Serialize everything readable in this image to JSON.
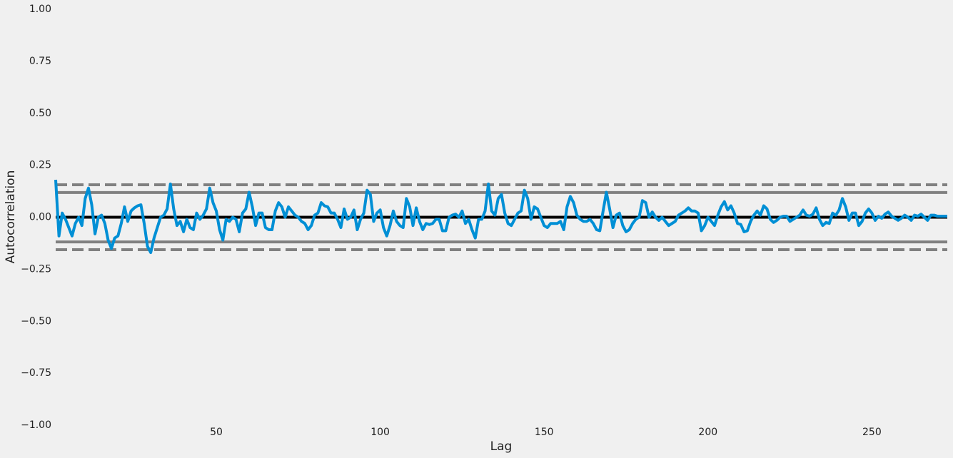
{
  "chart_data": {
    "type": "line",
    "xlabel": "Lag",
    "ylabel": "Autocorrelation",
    "color": "#008fd5",
    "xlim": [
      1,
      273
    ],
    "ylim": [
      -1,
      1
    ],
    "xticks": [
      50,
      100,
      150,
      200,
      250
    ],
    "yticks": [
      {
        "value": -1,
        "label": "−1.00"
      },
      {
        "value": -0.75,
        "label": "−0.75"
      },
      {
        "value": -0.5,
        "label": "−0.50"
      },
      {
        "value": -0.25,
        "label": "−0.25"
      },
      {
        "value": 0,
        "label": "0.00"
      },
      {
        "value": 0.25,
        "label": "0.25"
      },
      {
        "value": 0.5,
        "label": "0.50"
      },
      {
        "value": 0.75,
        "label": "0.75"
      },
      {
        "value": 1,
        "label": "1.00"
      }
    ],
    "hlines": [
      {
        "value": 0.1559,
        "style": "dashed",
        "color": "#808080"
      },
      {
        "value": 0.1186,
        "style": "solid",
        "color": "#808080"
      },
      {
        "value": 0,
        "style": "solid",
        "color": "#000000"
      },
      {
        "value": -0.1186,
        "style": "solid",
        "color": "#808080"
      },
      {
        "value": -0.1559,
        "style": "dashed",
        "color": "#808080"
      }
    ],
    "x": [
      1,
      2,
      3,
      4,
      5,
      6,
      7,
      8,
      9,
      10,
      11,
      12,
      13,
      14,
      15,
      16,
      17,
      18,
      19,
      20,
      21,
      22,
      23,
      24,
      25,
      26,
      27,
      28,
      29,
      30,
      31,
      32,
      33,
      34,
      35,
      36,
      37,
      38,
      39,
      40,
      41,
      42,
      43,
      44,
      45,
      46,
      47,
      48,
      49,
      50,
      51,
      52,
      53,
      54,
      55,
      56,
      57,
      58,
      59,
      60,
      61,
      62,
      63,
      64,
      65,
      66,
      67,
      68,
      69,
      70,
      71,
      72,
      73,
      74,
      75,
      76,
      77,
      78,
      79,
      80,
      81,
      82,
      83,
      84,
      85,
      86,
      87,
      88,
      89,
      90,
      91,
      92,
      93,
      94,
      95,
      96,
      97,
      98,
      99,
      100,
      101,
      102,
      103,
      104,
      105,
      106,
      107,
      108,
      109,
      110,
      111,
      112,
      113,
      114,
      115,
      116,
      117,
      118,
      119,
      120,
      121,
      122,
      123,
      124,
      125,
      126,
      127,
      128,
      129,
      130,
      131,
      132,
      133,
      134,
      135,
      136,
      137,
      138,
      139,
      140,
      141,
      142,
      143,
      144,
      145,
      146,
      147,
      148,
      149,
      150,
      151,
      152,
      153,
      154,
      155,
      156,
      157,
      158,
      159,
      160,
      161,
      162,
      163,
      164,
      165,
      166,
      167,
      168,
      169,
      170,
      171,
      172,
      173,
      174,
      175,
      176,
      177,
      178,
      179,
      180,
      181,
      182,
      183,
      184,
      185,
      186,
      187,
      188,
      189,
      190,
      191,
      192,
      193,
      194,
      195,
      196,
      197,
      198,
      199,
      200,
      201,
      202,
      203,
      204,
      205,
      206,
      207,
      208,
      209,
      210,
      211,
      212,
      213,
      214,
      215,
      216,
      217,
      218,
      219,
      220,
      221,
      222,
      223,
      224,
      225,
      226,
      227,
      228,
      229,
      230,
      231,
      232,
      233,
      234,
      235,
      236,
      237,
      238,
      239,
      240,
      241,
      242,
      243,
      244,
      245,
      246,
      247,
      248,
      249,
      250,
      251,
      252,
      253,
      254,
      255,
      256,
      257,
      258,
      259,
      260,
      261,
      262,
      263,
      264,
      265,
      266,
      267,
      268,
      269,
      270,
      271,
      272,
      273
    ],
    "values": [
      0.18,
      -0.09,
      0.02,
      -0.01,
      -0.05,
      -0.09,
      -0.03,
      0.0,
      -0.04,
      0.09,
      0.14,
      0.06,
      -0.08,
      0.0,
      0.01,
      -0.03,
      -0.11,
      -0.15,
      -0.1,
      -0.09,
      -0.03,
      0.05,
      -0.02,
      0.03,
      0.045,
      0.055,
      0.06,
      -0.03,
      -0.14,
      -0.17,
      -0.1,
      -0.05,
      0.0,
      0.01,
      0.04,
      0.16,
      0.04,
      -0.04,
      -0.02,
      -0.07,
      -0.01,
      -0.05,
      -0.06,
      0.02,
      -0.01,
      0.01,
      0.04,
      0.14,
      0.07,
      0.03,
      -0.06,
      -0.11,
      -0.01,
      -0.02,
      0.0,
      -0.01,
      -0.07,
      0.02,
      0.04,
      0.12,
      0.05,
      -0.04,
      0.02,
      0.02,
      -0.05,
      -0.06,
      -0.06,
      0.03,
      0.07,
      0.05,
      0.0,
      0.05,
      0.03,
      0.01,
      0.0,
      -0.02,
      -0.03,
      -0.06,
      -0.04,
      0.01,
      0.02,
      0.07,
      0.055,
      0.05,
      0.02,
      0.02,
      -0.01,
      -0.05,
      0.04,
      -0.01,
      0.0,
      0.035,
      -0.06,
      -0.01,
      0.02,
      0.13,
      0.11,
      -0.02,
      0.02,
      0.035,
      -0.05,
      -0.09,
      -0.04,
      0.03,
      -0.02,
      -0.04,
      -0.05,
      0.09,
      0.05,
      -0.04,
      0.045,
      -0.02,
      -0.06,
      -0.03,
      -0.035,
      -0.03,
      -0.01,
      -0.01,
      -0.065,
      -0.065,
      0.0,
      0.01,
      0.015,
      0.0,
      0.03,
      -0.03,
      -0.01,
      -0.06,
      -0.1,
      -0.01,
      -0.01,
      0.03,
      0.16,
      0.03,
      0.01,
      0.09,
      0.11,
      0.02,
      -0.03,
      -0.04,
      -0.01,
      0.02,
      0.03,
      0.13,
      0.09,
      -0.01,
      0.05,
      0.04,
      0.0,
      -0.04,
      -0.05,
      -0.03,
      -0.03,
      -0.03,
      -0.02,
      -0.06,
      0.05,
      0.1,
      0.07,
      0.01,
      -0.01,
      -0.02,
      -0.02,
      -0.01,
      -0.03,
      -0.06,
      -0.065,
      0.03,
      0.12,
      0.04,
      -0.05,
      0.01,
      0.02,
      -0.04,
      -0.07,
      -0.06,
      -0.03,
      -0.01,
      0.0,
      0.08,
      0.07,
      0.0,
      0.025,
      0.0,
      -0.015,
      0.0,
      -0.02,
      -0.04,
      -0.03,
      -0.02,
      0.01,
      0.02,
      0.03,
      0.045,
      0.03,
      0.03,
      0.02,
      -0.065,
      -0.04,
      0.0,
      -0.02,
      -0.04,
      0.01,
      0.05,
      0.075,
      0.035,
      0.055,
      0.02,
      -0.03,
      -0.035,
      -0.07,
      -0.065,
      -0.02,
      0.01,
      0.03,
      0.01,
      0.055,
      0.04,
      -0.01,
      -0.025,
      -0.015,
      0.0,
      0.005,
      0.005,
      -0.02,
      -0.01,
      0.0,
      0.01,
      0.035,
      0.01,
      0.005,
      0.015,
      0.045,
      -0.01,
      -0.04,
      -0.025,
      -0.03,
      0.02,
      0.01,
      0.035,
      0.09,
      0.05,
      -0.015,
      0.02,
      0.02,
      -0.04,
      -0.02,
      0.02,
      0.04,
      0.02,
      -0.015,
      0.005,
      -0.005,
      0.015,
      0.025,
      0.005,
      -0.005,
      -0.015,
      -0.005,
      0.01,
      0.0,
      -0.015,
      0.01,
      0.005,
      0.015,
      0.0,
      -0.015,
      0.01,
      0.01,
      0.005,
      0.005,
      0.005,
      0.005
    ]
  }
}
